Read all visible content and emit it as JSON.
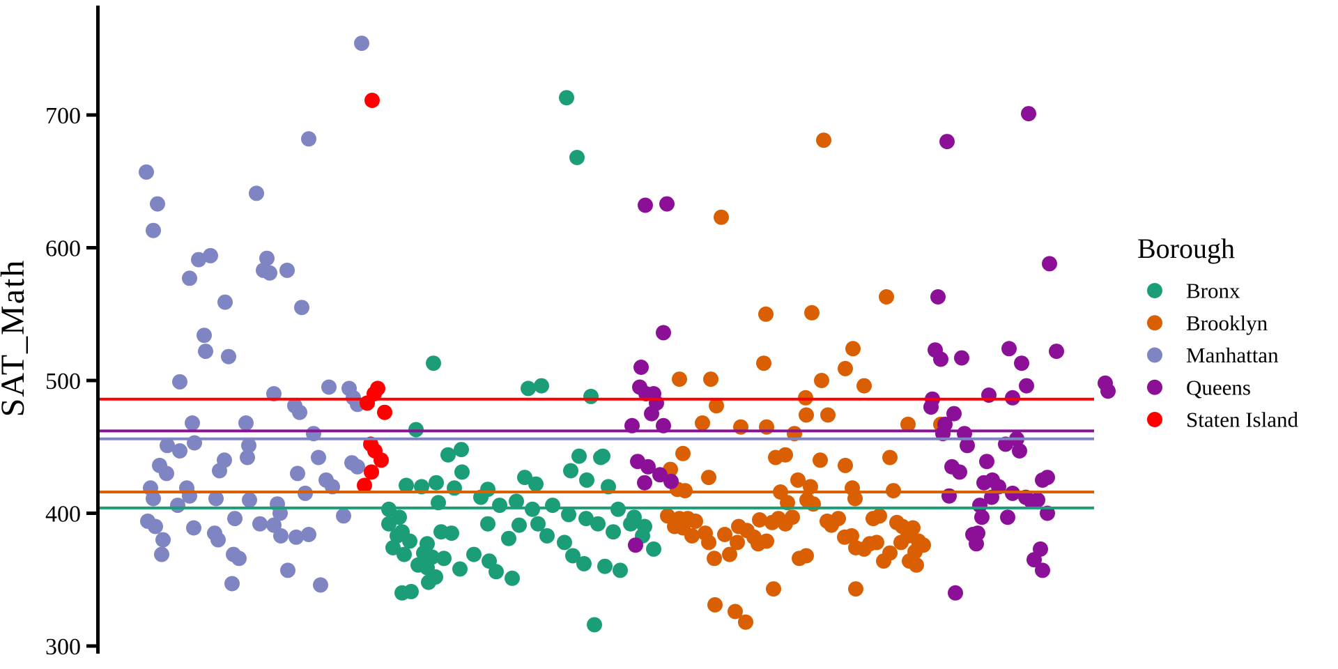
{
  "chart_data": {
    "type": "scatter",
    "title": "",
    "ylabel": "SAT_Math",
    "xlabel": "",
    "legend_title": "Borough",
    "legend_position": "right",
    "grid": false,
    "yticks": [
      700,
      600,
      500,
      400,
      300
    ],
    "ylim": [
      283,
      782
    ],
    "x_axis_labels_visible": false,
    "series": [
      {
        "name": "Bronx",
        "color": "#1B9E77",
        "mean_line": 404,
        "points": [
          [
            813,
            713
          ],
          [
            828,
            668
          ],
          [
            622,
            513
          ],
          [
            777,
            496
          ],
          [
            758,
            494
          ],
          [
            848,
            488
          ],
          [
            597,
            463
          ],
          [
            662,
            448
          ],
          [
            643,
            444
          ],
          [
            831,
            443
          ],
          [
            865,
            443
          ],
          [
            862,
            442
          ],
          [
            663,
            431
          ],
          [
            819,
            432
          ],
          [
            842,
            425
          ],
          [
            753,
            427
          ],
          [
            769,
            422
          ],
          [
            873,
            420
          ],
          [
            583,
            421
          ],
          [
            605,
            420
          ],
          [
            626,
            423
          ],
          [
            652,
            419
          ],
          [
            700,
            418
          ],
          [
            629,
            408
          ],
          [
            690,
            412
          ],
          [
            717,
            406
          ],
          [
            741,
            409
          ],
          [
            764,
            403
          ],
          [
            793,
            406
          ],
          [
            816,
            399
          ],
          [
            841,
            396
          ],
          [
            887,
            403
          ],
          [
            910,
            397
          ],
          [
            925,
            390
          ],
          [
            558,
            403
          ],
          [
            573,
            397
          ],
          [
            558,
            392
          ],
          [
            577,
            386
          ],
          [
            633,
            386
          ],
          [
            564,
            374
          ],
          [
            588,
            379
          ],
          [
            613,
            377
          ],
          [
            608,
            370
          ],
          [
            620,
            367
          ],
          [
            613,
            359
          ],
          [
            625,
            352
          ],
          [
            570,
            383
          ],
          [
            648,
            385
          ],
          [
            700,
            392
          ],
          [
            730,
            381
          ],
          [
            745,
            391
          ],
          [
            772,
            392
          ],
          [
            785,
            383
          ],
          [
            810,
            378
          ],
          [
            822,
            368
          ],
          [
            838,
            362
          ],
          [
            858,
            392
          ],
          [
            880,
            386
          ],
          [
            905,
            392
          ],
          [
            922,
            383
          ],
          [
            938,
            373
          ],
          [
            868,
            360
          ],
          [
            890,
            357
          ],
          [
            637,
            366
          ],
          [
            660,
            358
          ],
          [
            680,
            369
          ],
          [
            702,
            364
          ],
          [
            712,
            356
          ],
          [
            735,
            351
          ],
          [
            580,
            369
          ],
          [
            600,
            361
          ],
          [
            615,
            348
          ],
          [
            577,
            340
          ],
          [
            590,
            341
          ],
          [
            853,
            316
          ]
        ]
      },
      {
        "name": "Brooklyn",
        "color": "#D95F02",
        "mean_line": 416,
        "points": [
          [
            1182,
            681
          ],
          [
            1035,
            623
          ],
          [
            1272,
            563
          ],
          [
            1099,
            550
          ],
          [
            1165,
            551
          ],
          [
            1224,
            524
          ],
          [
            1096,
            513
          ],
          [
            1213,
            509
          ],
          [
            1179,
            500
          ],
          [
            1240,
            496
          ],
          [
            975,
            501
          ],
          [
            1020,
            501
          ],
          [
            1028,
            481
          ],
          [
            1156,
            487
          ],
          [
            1157,
            474
          ],
          [
            1188,
            474
          ],
          [
            1008,
            468
          ],
          [
            1063,
            465
          ],
          [
            1100,
            465
          ],
          [
            1140,
            460
          ],
          [
            1303,
            467
          ],
          [
            1350,
            467
          ],
          [
            980,
            445
          ],
          [
            1113,
            442
          ],
          [
            1127,
            444
          ],
          [
            1177,
            440
          ],
          [
            1213,
            436
          ],
          [
            1277,
            442
          ],
          [
            962,
            433
          ],
          [
            1017,
            427
          ],
          [
            972,
            418
          ],
          [
            983,
            417
          ],
          [
            1120,
            416
          ],
          [
            1145,
            425
          ],
          [
            1163,
            420
          ],
          [
            1223,
            419
          ],
          [
            1282,
            417
          ],
          [
            1227,
            411
          ],
          [
            1130,
            408
          ],
          [
            1158,
            410
          ],
          [
            1167,
            407
          ],
          [
            958,
            398
          ],
          [
            975,
            396
          ],
          [
            987,
            396
          ],
          [
            998,
            394
          ],
          [
            980,
            389
          ],
          [
            968,
            390
          ],
          [
            993,
            383
          ],
          [
            1012,
            385
          ],
          [
            1017,
            378
          ],
          [
            1025,
            366
          ],
          [
            1040,
            384
          ],
          [
            1047,
            369
          ],
          [
            1058,
            378
          ],
          [
            1060,
            390
          ],
          [
            1072,
            387
          ],
          [
            1082,
            382
          ],
          [
            1088,
            377
          ],
          [
            1100,
            379
          ],
          [
            1090,
            395
          ],
          [
            1108,
            393
          ],
          [
            1117,
            396
          ],
          [
            1127,
            392
          ],
          [
            1137,
            397
          ],
          [
            1147,
            366
          ],
          [
            1157,
            368
          ],
          [
            1187,
            394
          ],
          [
            1193,
            391
          ],
          [
            1203,
            396
          ],
          [
            1212,
            382
          ],
          [
            1222,
            383
          ],
          [
            1228,
            374
          ],
          [
            1240,
            373
          ],
          [
            1248,
            377
          ],
          [
            1258,
            378
          ],
          [
            1253,
            396
          ],
          [
            1262,
            398
          ],
          [
            1287,
            393
          ],
          [
            1295,
            390
          ],
          [
            1303,
            383
          ],
          [
            1310,
            389
          ],
          [
            1318,
            379
          ],
          [
            1325,
            376
          ],
          [
            1313,
            371
          ],
          [
            1293,
            378
          ],
          [
            1277,
            370
          ],
          [
            1268,
            364
          ],
          [
            1305,
            364
          ],
          [
            1315,
            361
          ],
          [
            1026,
            331
          ],
          [
            1055,
            326
          ],
          [
            1070,
            318
          ],
          [
            1110,
            343
          ],
          [
            1228,
            343
          ]
        ]
      },
      {
        "name": "Manhattan",
        "color": "#7F84C2",
        "mean_line": 456,
        "points": [
          [
            519,
            754
          ],
          [
            443,
            682
          ],
          [
            210,
            657
          ],
          [
            368,
            641
          ],
          [
            226,
            633
          ],
          [
            220,
            613
          ],
          [
            302,
            594
          ],
          [
            285,
            591
          ],
          [
            383,
            592
          ],
          [
            378,
            583
          ],
          [
            387,
            581
          ],
          [
            412,
            583
          ],
          [
            272,
            577
          ],
          [
            323,
            559
          ],
          [
            433,
            555
          ],
          [
            293,
            534
          ],
          [
            295,
            522
          ],
          [
            328,
            518
          ],
          [
            258,
            499
          ],
          [
            472,
            495
          ],
          [
            501,
            494
          ],
          [
            393,
            490
          ],
          [
            507,
            487
          ],
          [
            423,
            481
          ],
          [
            513,
            482
          ],
          [
            430,
            476
          ],
          [
            276,
            468
          ],
          [
            353,
            468
          ],
          [
            450,
            460
          ],
          [
            240,
            451
          ],
          [
            279,
            453
          ],
          [
            357,
            451
          ],
          [
            258,
            447
          ],
          [
            457,
            442
          ],
          [
            355,
            442
          ],
          [
            322,
            440
          ],
          [
            505,
            438
          ],
          [
            315,
            432
          ],
          [
            513,
            435
          ],
          [
            229,
            436
          ],
          [
            239,
            430
          ],
          [
            427,
            430
          ],
          [
            468,
            425
          ],
          [
            477,
            420
          ],
          [
            216,
            419
          ],
          [
            268,
            419
          ],
          [
            220,
            411
          ],
          [
            272,
            413
          ],
          [
            310,
            411
          ],
          [
            358,
            410
          ],
          [
            398,
            407
          ],
          [
            438,
            415
          ],
          [
            255,
            406
          ],
          [
            402,
            400
          ],
          [
            493,
            398
          ],
          [
            212,
            394
          ],
          [
            223,
            390
          ],
          [
            278,
            389
          ],
          [
            337,
            396
          ],
          [
            373,
            392
          ],
          [
            393,
            391
          ],
          [
            234,
            380
          ],
          [
            313,
            380
          ],
          [
            308,
            385
          ],
          [
            403,
            383
          ],
          [
            425,
            382
          ],
          [
            443,
            384
          ],
          [
            335,
            369
          ],
          [
            343,
            366
          ],
          [
            232,
            369
          ],
          [
            413,
            357
          ],
          [
            460,
            346
          ],
          [
            333,
            347
          ]
        ]
      },
      {
        "name": "Queens",
        "color": "#8C1097",
        "mean_line": 462,
        "points": [
          [
            1476,
            701
          ],
          [
            1359,
            680
          ],
          [
            926,
            632
          ],
          [
            957,
            633
          ],
          [
            1506,
            588
          ],
          [
            1346,
            563
          ],
          [
            952,
            536
          ],
          [
            920,
            510
          ],
          [
            918,
            495
          ],
          [
            927,
            490
          ],
          [
            938,
            490
          ],
          [
            942,
            483
          ],
          [
            935,
            475
          ],
          [
            907,
            466
          ],
          [
            952,
            466
          ],
          [
            915,
            439
          ],
          [
            930,
            435
          ],
          [
            947,
            429
          ],
          [
            925,
            423
          ],
          [
            963,
            424
          ],
          [
            912,
            376
          ],
          [
            1342,
            523
          ],
          [
            1350,
            516
          ],
          [
            1380,
            517
          ],
          [
            1448,
            524
          ],
          [
            1466,
            513
          ],
          [
            1516,
            522
          ],
          [
            1473,
            496
          ],
          [
            1419,
            489
          ],
          [
            1453,
            487
          ],
          [
            1338,
            486
          ],
          [
            1336,
            480
          ],
          [
            1369,
            475
          ],
          [
            1356,
            467
          ],
          [
            1353,
            460
          ],
          [
            1384,
            460
          ],
          [
            1388,
            451
          ],
          [
            1443,
            452
          ],
          [
            1459,
            456
          ],
          [
            1463,
            447
          ],
          [
            1366,
            435
          ],
          [
            1377,
            431
          ],
          [
            1416,
            439
          ],
          [
            1412,
            423
          ],
          [
            1424,
            425
          ],
          [
            1433,
            420
          ],
          [
            1362,
            413
          ],
          [
            1423,
            412
          ],
          [
            1453,
            415
          ],
          [
            1472,
            412
          ],
          [
            1480,
            409
          ],
          [
            1489,
            410
          ],
          [
            1496,
            425
          ],
          [
            1503,
            427
          ],
          [
            1406,
            406
          ],
          [
            1409,
            397
          ],
          [
            1446,
            397
          ],
          [
            1503,
            400
          ],
          [
            1396,
            384
          ],
          [
            1403,
            385
          ],
          [
            1401,
            377
          ],
          [
            1493,
            373
          ],
          [
            1484,
            365
          ],
          [
            1496,
            357
          ],
          [
            1371,
            340
          ],
          [
            1586,
            498
          ],
          [
            1590,
            492
          ]
        ]
      },
      {
        "name": "Staten Island",
        "color": "#FF0000",
        "mean_line": 486,
        "points": [
          [
            534,
            711
          ],
          [
            542,
            494
          ],
          [
            537,
            490
          ],
          [
            527,
            483
          ],
          [
            552,
            476
          ],
          [
            532,
            452
          ],
          [
            538,
            447
          ],
          [
            547,
            440
          ],
          [
            533,
            431
          ],
          [
            523,
            421
          ]
        ]
      }
    ]
  }
}
